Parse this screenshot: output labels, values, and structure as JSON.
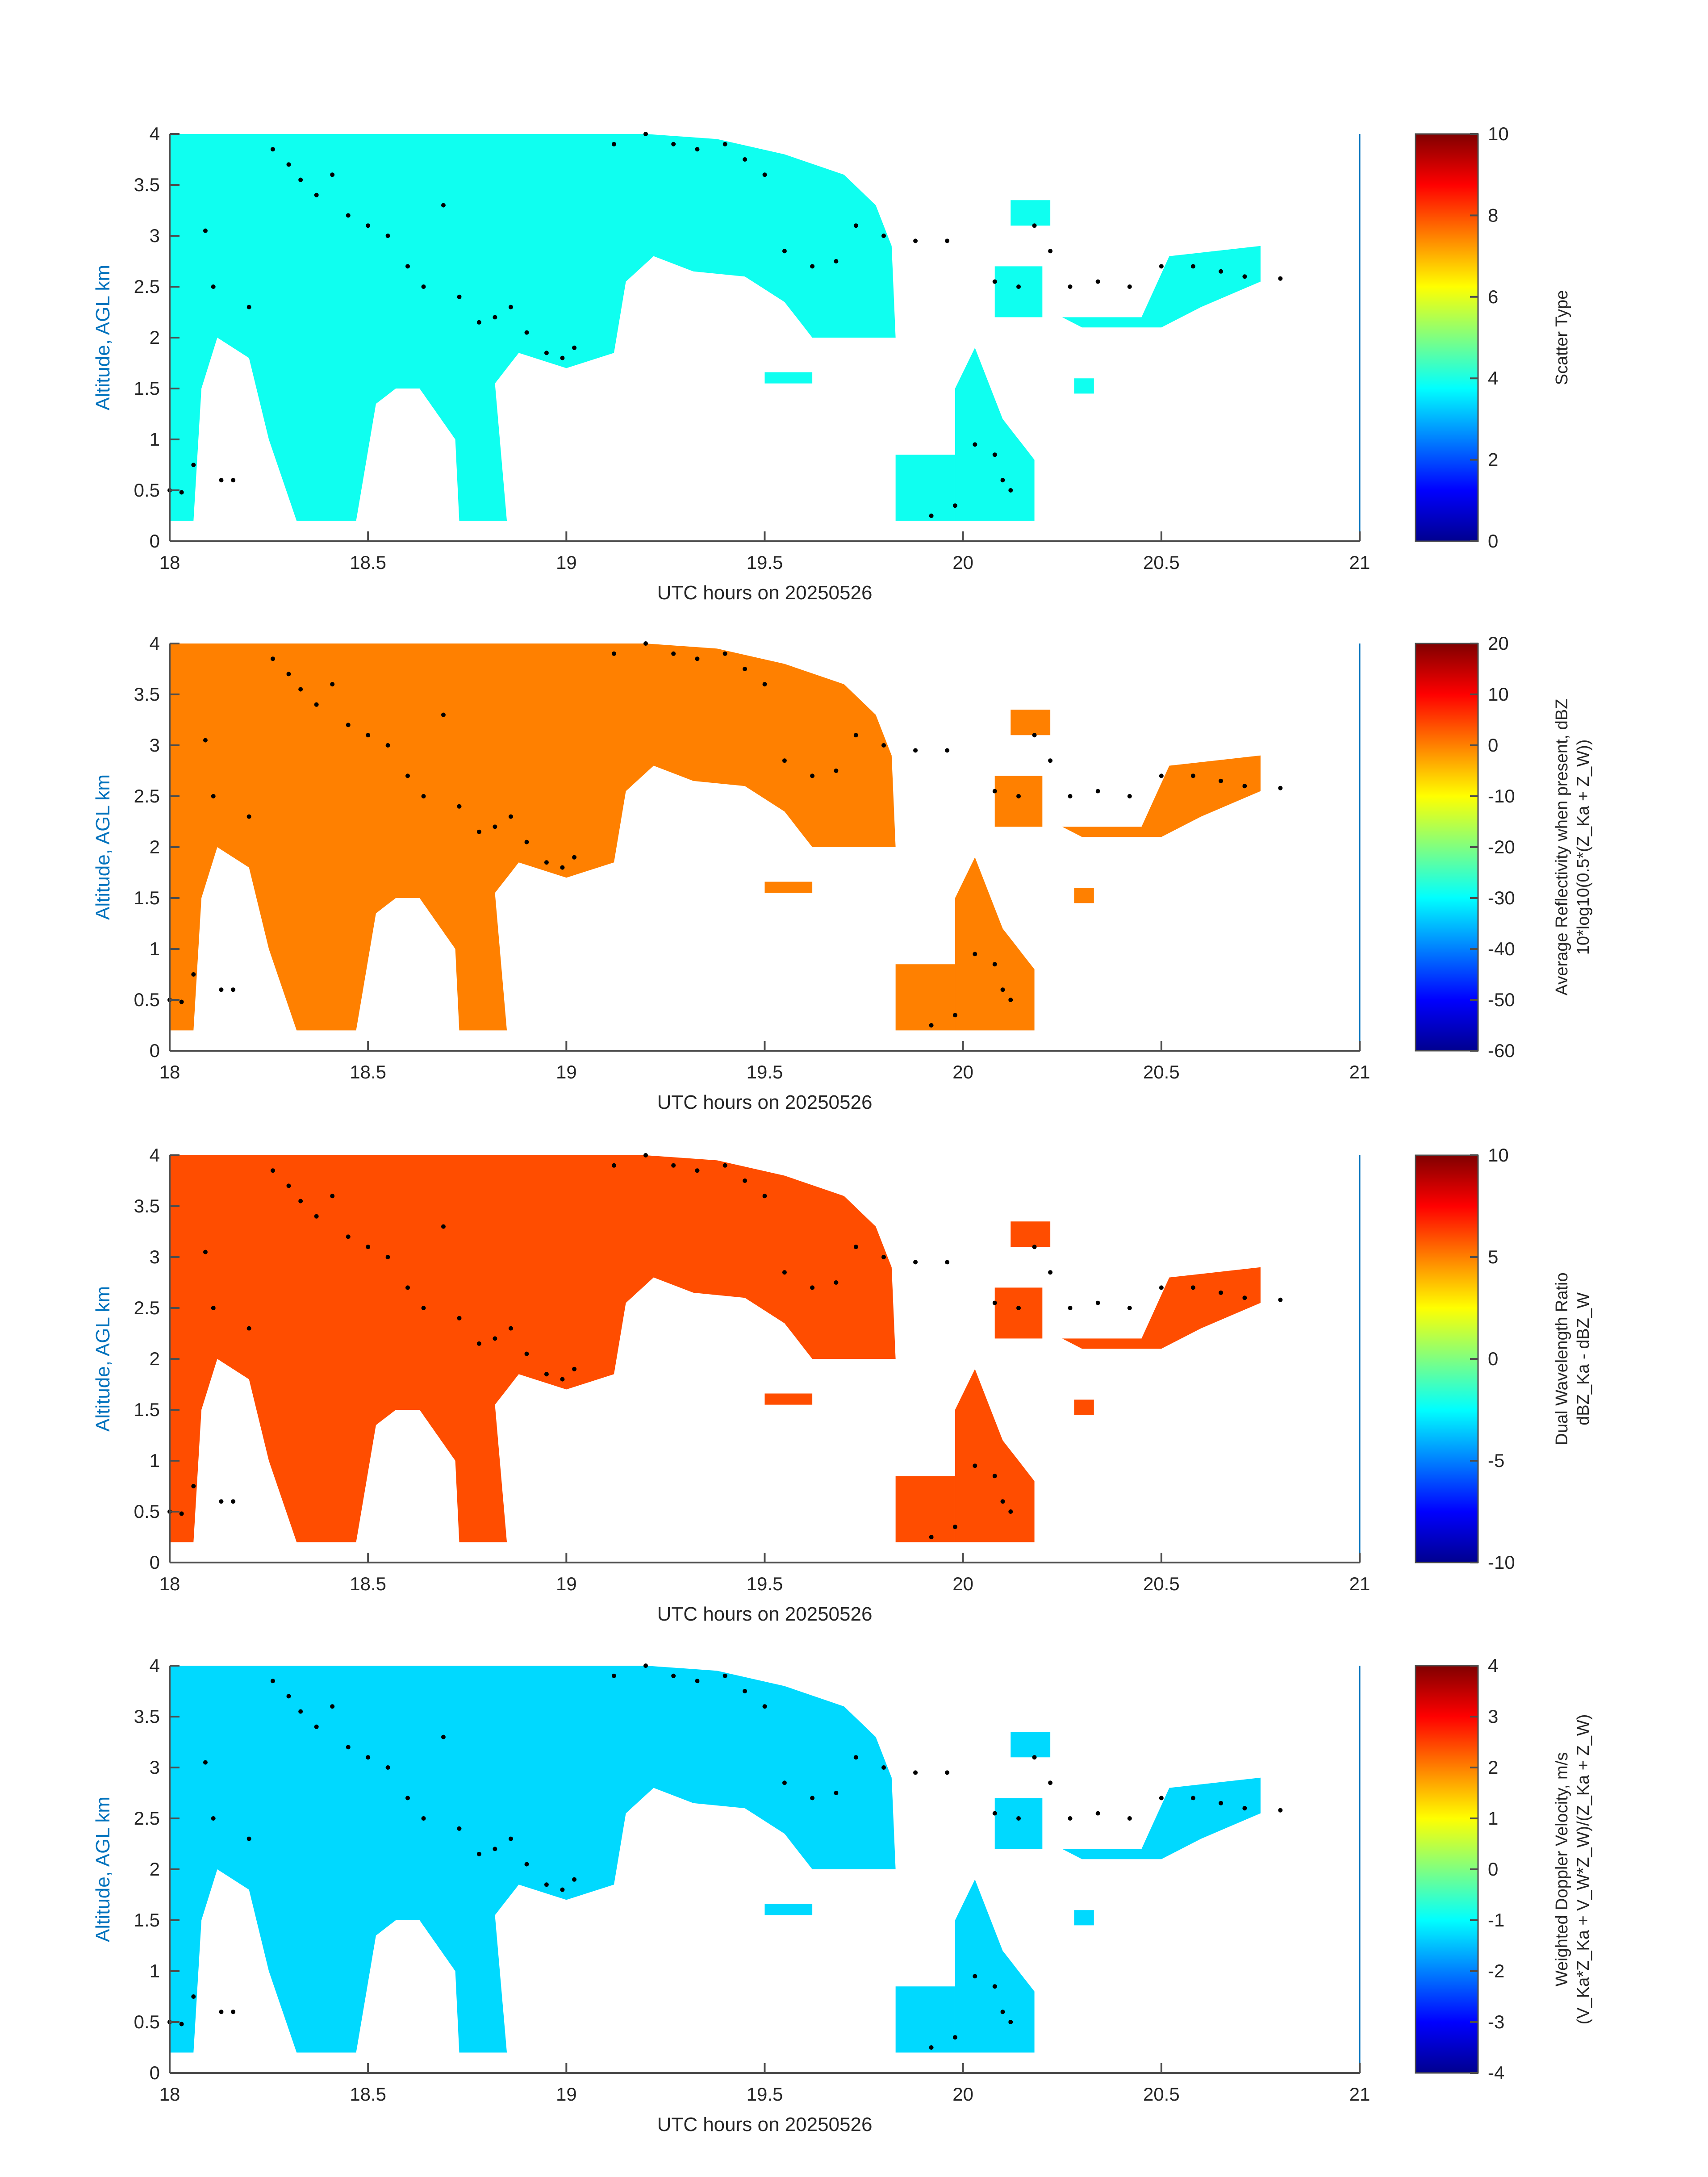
{
  "colormap": [
    "#00008f",
    "#0000ff",
    "#0080ff",
    "#00ffff",
    "#80ff80",
    "#ffff00",
    "#ff8000",
    "#ff0000",
    "#800000"
  ],
  "common": {
    "xlabel": "UTC hours on 20250526",
    "ylabel": "Altitude, AGL km",
    "xticks": [
      "18",
      "18.5",
      "19",
      "19.5",
      "20",
      "20.5",
      "21"
    ],
    "xlim": [
      18,
      21
    ],
    "yticks": [
      "0",
      "0.5",
      "1",
      "1.5",
      "2",
      "2.5",
      "3",
      "3.5",
      "4"
    ],
    "ylim": [
      0,
      4
    ],
    "cloud_top_dots": [
      [
        18.0,
        0.5
      ],
      [
        18.03,
        0.48
      ],
      [
        18.06,
        0.75
      ],
      [
        18.09,
        3.05
      ],
      [
        18.11,
        2.5
      ],
      [
        18.13,
        0.6
      ],
      [
        18.16,
        0.6
      ],
      [
        18.2,
        2.3
      ],
      [
        18.26,
        3.85
      ],
      [
        18.3,
        3.7
      ],
      [
        18.33,
        3.55
      ],
      [
        18.37,
        3.4
      ],
      [
        18.41,
        3.6
      ],
      [
        18.45,
        3.2
      ],
      [
        18.5,
        3.1
      ],
      [
        18.55,
        3.0
      ],
      [
        18.6,
        2.7
      ],
      [
        18.64,
        2.5
      ],
      [
        18.69,
        3.3
      ],
      [
        18.73,
        2.4
      ],
      [
        18.78,
        2.15
      ],
      [
        18.82,
        2.2
      ],
      [
        18.86,
        2.3
      ],
      [
        18.9,
        2.05
      ],
      [
        18.95,
        1.85
      ],
      [
        18.99,
        1.8
      ],
      [
        19.02,
        1.9
      ],
      [
        19.12,
        3.9
      ],
      [
        19.2,
        4.0
      ],
      [
        19.27,
        3.9
      ],
      [
        19.33,
        3.85
      ],
      [
        19.4,
        3.9
      ],
      [
        19.45,
        3.75
      ],
      [
        19.5,
        3.6
      ],
      [
        19.55,
        2.85
      ],
      [
        19.62,
        2.7
      ],
      [
        19.68,
        2.75
      ],
      [
        19.73,
        3.1
      ],
      [
        19.8,
        3.0
      ],
      [
        19.88,
        2.95
      ],
      [
        19.96,
        2.95
      ],
      [
        20.08,
        2.55
      ],
      [
        20.14,
        2.5
      ],
      [
        20.18,
        3.1
      ],
      [
        20.22,
        2.85
      ],
      [
        20.27,
        2.5
      ],
      [
        20.34,
        2.55
      ],
      [
        20.42,
        2.5
      ],
      [
        20.5,
        2.7
      ],
      [
        20.58,
        2.7
      ],
      [
        20.65,
        2.65
      ],
      [
        20.71,
        2.6
      ],
      [
        20.8,
        2.58
      ],
      [
        19.92,
        0.25
      ],
      [
        19.98,
        0.35
      ],
      [
        20.03,
        0.95
      ],
      [
        20.08,
        0.85
      ],
      [
        20.1,
        0.6
      ],
      [
        20.12,
        0.5
      ]
    ]
  },
  "charts": [
    {
      "type": "heatmap",
      "colorbar_label": "Scatter Type",
      "colorbar_sub": "",
      "clim": [
        0,
        10
      ],
      "cticks": [
        "0",
        "2",
        "4",
        "6",
        "8",
        "10"
      ],
      "fill_value": 3.9
    },
    {
      "type": "heatmap",
      "colorbar_label": "Average Reflectivity when present, dBZ",
      "colorbar_sub": "10*log10(0.5*(Z_Ka + Z_W))",
      "clim": [
        -60,
        20
      ],
      "cticks": [
        "-60",
        "-50",
        "-40",
        "-30",
        "-20",
        "-10",
        "0",
        "10",
        "20"
      ],
      "fill_value": 0
    },
    {
      "type": "heatmap",
      "colorbar_label": "Dual Wavelength Ratio",
      "colorbar_sub": "dBZ_Ka - dBZ_W",
      "clim": [
        -10,
        10
      ],
      "cticks": [
        "-10",
        "-5",
        "0",
        "5",
        "10"
      ],
      "fill_value": 6
    },
    {
      "type": "heatmap",
      "colorbar_label": "Weighted Doppler Velocity, m/s",
      "colorbar_sub": "(V_Ka*Z_Ka + V_W*Z_W)/(Z_Ka + Z_W)",
      "clim": [
        -4,
        4
      ],
      "cticks": [
        "-4",
        "-3",
        "-2",
        "-1",
        "0",
        "1",
        "2",
        "3",
        "4"
      ],
      "fill_value": -1.3
    }
  ]
}
